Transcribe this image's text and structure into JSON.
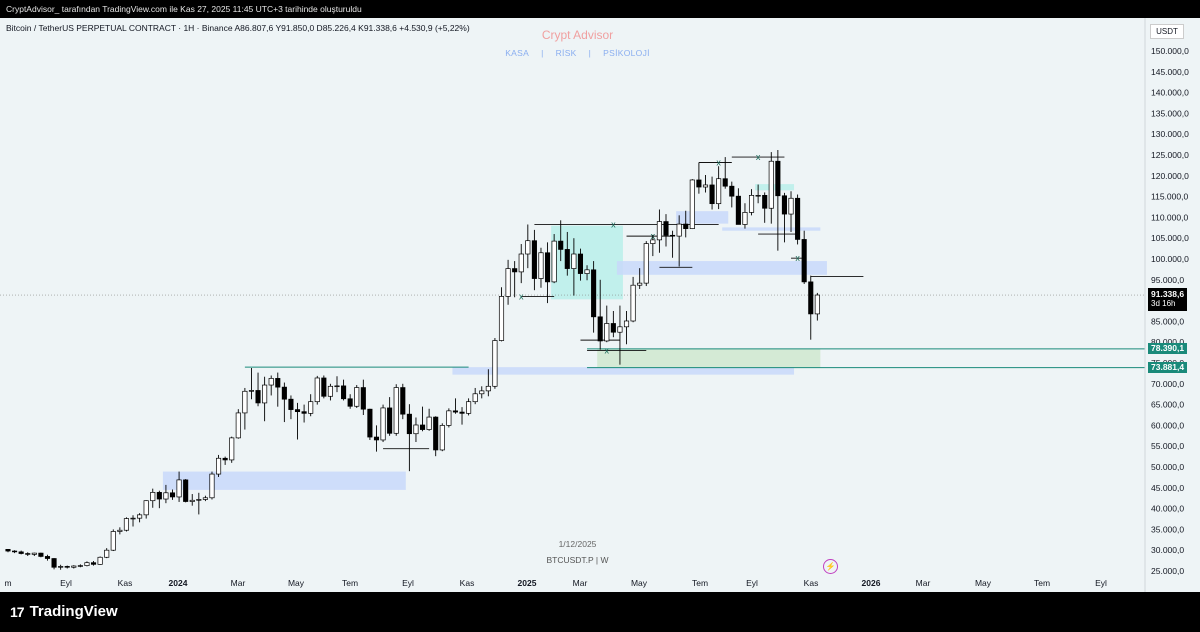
{
  "header": {
    "attribution": "CryptAdvisor_ tarafından TradingView.com ile Kas 27, 2025 11:45 UTC+3 tarihinde oluşturuldu"
  },
  "legend": {
    "line": "Bitcoin / TetherUS PERPETUAL CONTRACT · 1H · Binance  A86.807,6  Y91.850,0  D85.226,4  K91.338,6  +4.530,9 (+5,22%)"
  },
  "watermark": {
    "title": "Crypt Advisor",
    "menu": [
      "KASA",
      "|",
      "RİSK",
      "|",
      "PSİKOLOJİ"
    ]
  },
  "center": {
    "date": "1/12/2025",
    "symbol": "BTCUSDT.P  |  W"
  },
  "currency": "USDT",
  "price_tags": {
    "last_price": "91.338,6",
    "countdown": "3d 16h",
    "level_upper": "78.390,1",
    "level_lower": "73.881,4"
  },
  "footer": {
    "brand": "TradingView",
    "logo_icon": "tradingview-logo-icon"
  },
  "colors": {
    "background": "#eef4f6",
    "up_candle": "#ffffff",
    "down_candle": "#000000",
    "zone_blue": "#c8d8fa",
    "zone_teal": "#b8eeea",
    "zone_green": "#cfe8cf",
    "level_line": "#1a8a7a",
    "title_red": "#f0a0a0",
    "menu_blue": "#8aaef0"
  },
  "chart_data": {
    "type": "candlestick",
    "timeframe": "W",
    "y_axis": {
      "ticks": [
        25000,
        30000,
        35000,
        40000,
        45000,
        50000,
        55000,
        60000,
        65000,
        70000,
        75000,
        80000,
        85000,
        90000,
        95000,
        100000,
        105000,
        110000,
        115000,
        120000,
        125000,
        130000,
        135000,
        140000,
        145000,
        150000
      ],
      "tick_labels": [
        "25.000,0",
        "30.000,0",
        "35.000,0",
        "40.000,0",
        "45.000,0",
        "50.000,0",
        "55.000,0",
        "60.000,0",
        "65.000,0",
        "70.000,0",
        "75.000,0",
        "80.000,0",
        "85.000,0",
        "90.000,0",
        "95.000,0",
        "100.000,0",
        "105.000,0",
        "110.000,0",
        "115.000,0",
        "120.000,0",
        "125.000,0",
        "130.000,0",
        "135.000,0",
        "140.000,0",
        "145.000,0",
        "150.000,0"
      ]
    },
    "x_axis": {
      "labels": [
        "m",
        "Eyl",
        "Kas",
        "2024",
        "Mar",
        "May",
        "Tem",
        "Eyl",
        "Kas",
        "2025",
        "Mar",
        "May",
        "Tem",
        "Eyl",
        "Kas",
        "2026",
        "Mar",
        "May",
        "Tem",
        "Eyl"
      ],
      "bold": [
        "2024",
        "2025",
        "2026"
      ]
    },
    "last_price": 91338.6,
    "levels": [
      78390.1,
      73881.4
    ],
    "candles": [
      [
        30200,
        30300,
        29500,
        29800
      ],
      [
        29800,
        30000,
        29300,
        29600
      ],
      [
        29600,
        29900,
        29000,
        29200
      ],
      [
        29200,
        29500,
        28600,
        29000
      ],
      [
        29000,
        29400,
        28600,
        29300
      ],
      [
        29300,
        29400,
        28300,
        28500
      ],
      [
        28500,
        28900,
        27500,
        28000
      ],
      [
        28000,
        28100,
        25400,
        25900
      ],
      [
        25900,
        26500,
        25300,
        26100
      ],
      [
        26100,
        26300,
        25600,
        25900
      ],
      [
        25900,
        26400,
        25600,
        26200
      ],
      [
        26200,
        26600,
        25900,
        26300
      ],
      [
        26300,
        27300,
        26100,
        27000
      ],
      [
        27000,
        27400,
        26300,
        26600
      ],
      [
        26600,
        28500,
        26500,
        28300
      ],
      [
        28300,
        30500,
        28100,
        30000
      ],
      [
        30000,
        35000,
        29800,
        34500
      ],
      [
        34500,
        35500,
        33800,
        34800
      ],
      [
        34800,
        37900,
        34500,
        37600
      ],
      [
        37600,
        38400,
        35700,
        37700
      ],
      [
        37700,
        38900,
        36700,
        38500
      ],
      [
        38500,
        42000,
        37600,
        41900
      ],
      [
        41900,
        44800,
        40200,
        43900
      ],
      [
        43900,
        44300,
        40100,
        42300
      ],
      [
        42300,
        45700,
        41300,
        43800
      ],
      [
        43800,
        44600,
        42100,
        42800
      ],
      [
        42800,
        48900,
        41600,
        46900
      ],
      [
        46900,
        47100,
        41500,
        41700
      ],
      [
        41700,
        43500,
        40700,
        42000
      ],
      [
        42000,
        43800,
        38600,
        42200
      ],
      [
        42200,
        43100,
        41800,
        42600
      ],
      [
        42600,
        48900,
        42200,
        48300
      ],
      [
        48300,
        52900,
        47600,
        52100
      ],
      [
        52100,
        52500,
        50500,
        51700
      ],
      [
        51700,
        57300,
        51000,
        57000
      ],
      [
        57000,
        63900,
        56800,
        63000
      ],
      [
        63000,
        69000,
        59000,
        68200
      ],
      [
        68200,
        73800,
        66300,
        68400
      ],
      [
        68400,
        72700,
        64600,
        65400
      ],
      [
        65400,
        71700,
        61000,
        69700
      ],
      [
        69700,
        72000,
        67200,
        71300
      ],
      [
        71300,
        72700,
        64500,
        69200
      ],
      [
        69200,
        70300,
        60800,
        66300
      ],
      [
        66300,
        67200,
        61500,
        63800
      ],
      [
        63800,
        65400,
        56600,
        63300
      ],
      [
        63300,
        65000,
        60700,
        62900
      ],
      [
        62900,
        67500,
        62200,
        65700
      ],
      [
        65700,
        71900,
        65000,
        71400
      ],
      [
        71400,
        72000,
        66500,
        67000
      ],
      [
        67000,
        70000,
        66000,
        69400
      ],
      [
        69400,
        71800,
        68000,
        69500
      ],
      [
        69500,
        71000,
        66000,
        66400
      ],
      [
        66400,
        67500,
        64000,
        64600
      ],
      [
        64600,
        69700,
        64200,
        69100
      ],
      [
        69100,
        71000,
        62500,
        63900
      ],
      [
        63900,
        64000,
        56500,
        57200
      ],
      [
        57200,
        60000,
        53700,
        56500
      ],
      [
        56500,
        65000,
        56000,
        64200
      ],
      [
        64200,
        66800,
        57500,
        58100
      ],
      [
        58100,
        69900,
        57500,
        69100
      ],
      [
        69100,
        70000,
        61500,
        62700
      ],
      [
        62700,
        65100,
        49000,
        58000
      ],
      [
        58000,
        61900,
        56000,
        60100
      ],
      [
        60100,
        64500,
        58600,
        59000
      ],
      [
        59000,
        64000,
        58700,
        62000
      ],
      [
        62000,
        62200,
        52600,
        54100
      ],
      [
        54100,
        60500,
        53800,
        60000
      ],
      [
        60000,
        64100,
        59500,
        63500
      ],
      [
        63500,
        66500,
        62800,
        63200
      ],
      [
        63200,
        64400,
        60200,
        62900
      ],
      [
        62900,
        66500,
        62400,
        65700
      ],
      [
        65700,
        69000,
        65100,
        67600
      ],
      [
        67600,
        69400,
        66500,
        68300
      ],
      [
        68300,
        73500,
        67000,
        69400
      ],
      [
        69400,
        81000,
        68800,
        80400
      ],
      [
        80400,
        93200,
        80200,
        91000
      ],
      [
        91000,
        99800,
        89000,
        97700
      ],
      [
        97700,
        99500,
        90800,
        96900
      ],
      [
        96900,
        103600,
        94200,
        101200
      ],
      [
        101200,
        108300,
        97800,
        104400
      ],
      [
        104400,
        107000,
        92500,
        95300
      ],
      [
        95300,
        102700,
        93100,
        101500
      ],
      [
        101500,
        104000,
        89400,
        94500
      ],
      [
        94500,
        106000,
        94200,
        104300
      ],
      [
        104300,
        109300,
        99500,
        102300
      ],
      [
        102300,
        106500,
        96000,
        97700
      ],
      [
        97700,
        105000,
        91200,
        101200
      ],
      [
        101200,
        102500,
        94800,
        96500
      ],
      [
        96500,
        98500,
        94900,
        97400
      ],
      [
        97400,
        99500,
        82300,
        86100
      ],
      [
        86100,
        95000,
        78200,
        80300
      ],
      [
        80300,
        88800,
        80000,
        84500
      ],
      [
        84500,
        87500,
        81200,
        82400
      ],
      [
        82400,
        88800,
        74600,
        83700
      ],
      [
        83700,
        87500,
        79500,
        85100
      ],
      [
        85100,
        95700,
        84800,
        93700
      ],
      [
        93700,
        97800,
        92800,
        94200
      ],
      [
        94200,
        104300,
        93500,
        103700
      ],
      [
        103700,
        105800,
        100700,
        104600
      ],
      [
        104600,
        111900,
        101500,
        109000
      ],
      [
        109000,
        110800,
        103000,
        105700
      ],
      [
        105700,
        106800,
        100300,
        105500
      ],
      [
        105500,
        110500,
        98200,
        108400
      ],
      [
        108400,
        111600,
        105200,
        107300
      ],
      [
        107300,
        119200,
        107200,
        119000
      ],
      [
        119000,
        123200,
        115700,
        117300
      ],
      [
        117300,
        120200,
        116000,
        117800
      ],
      [
        117800,
        119800,
        111900,
        113300
      ],
      [
        113300,
        122300,
        112000,
        119300
      ],
      [
        119300,
        124500,
        116900,
        117500
      ],
      [
        117500,
        118600,
        112400,
        115100
      ],
      [
        115100,
        117000,
        108700,
        108300
      ],
      [
        108300,
        113400,
        107300,
        111200
      ],
      [
        111200,
        116800,
        110500,
        115300
      ],
      [
        115300,
        117900,
        113400,
        115300
      ],
      [
        115300,
        116000,
        108700,
        112200
      ],
      [
        112200,
        125700,
        108500,
        123500
      ],
      [
        123500,
        126200,
        102000,
        115200
      ],
      [
        115200,
        115900,
        104000,
        110800
      ],
      [
        110800,
        116300,
        106500,
        114600
      ],
      [
        114600,
        115500,
        103500,
        104700
      ],
      [
        104700,
        106800,
        94000,
        94500
      ],
      [
        94500,
        96000,
        80600,
        86800
      ],
      [
        86800,
        91850,
        85200,
        91338.6
      ]
    ],
    "zones": [
      {
        "from_index": 68,
        "to_index": 119,
        "low": 72200,
        "high": 74000,
        "color": "zone_blue"
      },
      {
        "from_index": 24,
        "to_index": 60,
        "low": 44500,
        "high": 48900,
        "color": "zone_blue"
      },
      {
        "from_index": 83,
        "to_index": 93,
        "low": 90300,
        "high": 108000,
        "color": "zone_teal"
      },
      {
        "from_index": 93,
        "to_index": 124,
        "low": 96200,
        "high": 99500,
        "color": "zone_blue"
      },
      {
        "from_index": 102,
        "to_index": 109,
        "low": 108500,
        "high": 111500,
        "color": "zone_blue"
      },
      {
        "from_index": 90,
        "to_index": 123,
        "low": 73900,
        "high": 78400,
        "color": "zone_green"
      },
      {
        "from_index": 109,
        "to_index": 123,
        "low": 106800,
        "high": 107600,
        "color": "zone_blue"
      },
      {
        "from_index": 114,
        "to_index": 119,
        "low": 116500,
        "high": 118000,
        "color": "zone_teal"
      }
    ]
  }
}
